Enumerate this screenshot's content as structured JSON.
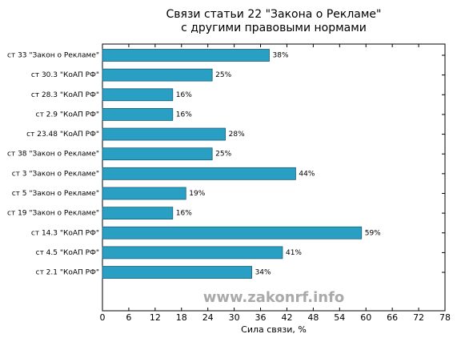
{
  "chart_data": {
    "type": "barh",
    "title": "Связи статьи 22 \"Закона о Рекламе\"",
    "subtitle": "с другими правовыми нормами",
    "xlabel": "Сила связи, %",
    "watermark": "www.zakonrf.info",
    "categories": [
      "ст 33 \"Закон о Рекламе\"",
      "ст 30.3 \"КоАП РФ\"",
      "ст 28.3 \"КоАП РФ\"",
      "ст 2.9 \"КоАП РФ\"",
      "ст 23.48 \"КоАП РФ\"",
      "ст 38 \"Закон о Рекламе\"",
      "ст 3 \"Закон о Рекламе\"",
      "ст 5 \"Закон о Рекламе\"",
      "ст 19 \"Закон о Рекламе\"",
      "ст 14.3 \"КоАП РФ\"",
      "ст 4.5 \"КоАП РФ\"",
      "ст 2.1 \"КоАП РФ\""
    ],
    "values": [
      38,
      25,
      16,
      16,
      28,
      25,
      44,
      19,
      16,
      59,
      41,
      34
    ],
    "value_labels": [
      "38%",
      "25%",
      "16%",
      "16%",
      "28%",
      "25%",
      "44%",
      "19%",
      "16%",
      "59%",
      "41%",
      "34%"
    ],
    "color": "#2a9fc4",
    "xlim": [
      0,
      78
    ],
    "xticks": [
      0,
      6,
      12,
      18,
      24,
      30,
      36,
      42,
      48,
      54,
      60,
      66,
      72,
      78
    ]
  }
}
